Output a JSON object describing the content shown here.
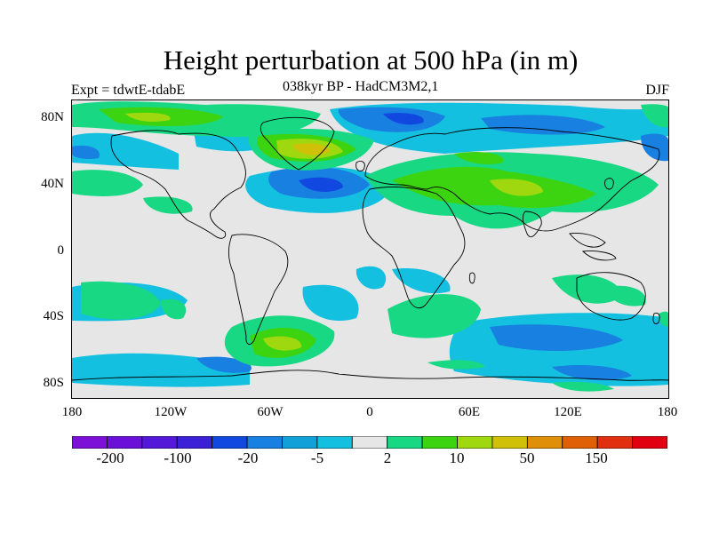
{
  "title": "Height perturbation at 500 hPa (in m)",
  "subtitle": "038kyr BP - HadCM3M2,1",
  "experiment_label": "Expt = tdwtE-tdabE",
  "season_label": "DJF",
  "map": {
    "projection": "cylindrical equidistant",
    "lon_range": [
      -180,
      180
    ],
    "lat_range": [
      -90,
      90
    ],
    "lat_ticks": [
      "80N",
      "40N",
      "0",
      "40S",
      "80S"
    ],
    "lon_ticks": [
      "180",
      "120W",
      "60W",
      "0",
      "60E",
      "120E",
      "180"
    ]
  },
  "colorbar": {
    "colors": [
      "#7d10d8",
      "#6a10d8",
      "#5418d8",
      "#3b20d8",
      "#1048e0",
      "#1880e0",
      "#12a0d8",
      "#14c0e0",
      "#e6e6e6",
      "#18d884",
      "#3cd410",
      "#a0d810",
      "#d0c008",
      "#e09008",
      "#e06008",
      "#e03010",
      "#e00010"
    ],
    "labels": [
      "-200",
      "-100",
      "-20",
      "-5",
      "2",
      "10",
      "50",
      "150"
    ]
  }
}
